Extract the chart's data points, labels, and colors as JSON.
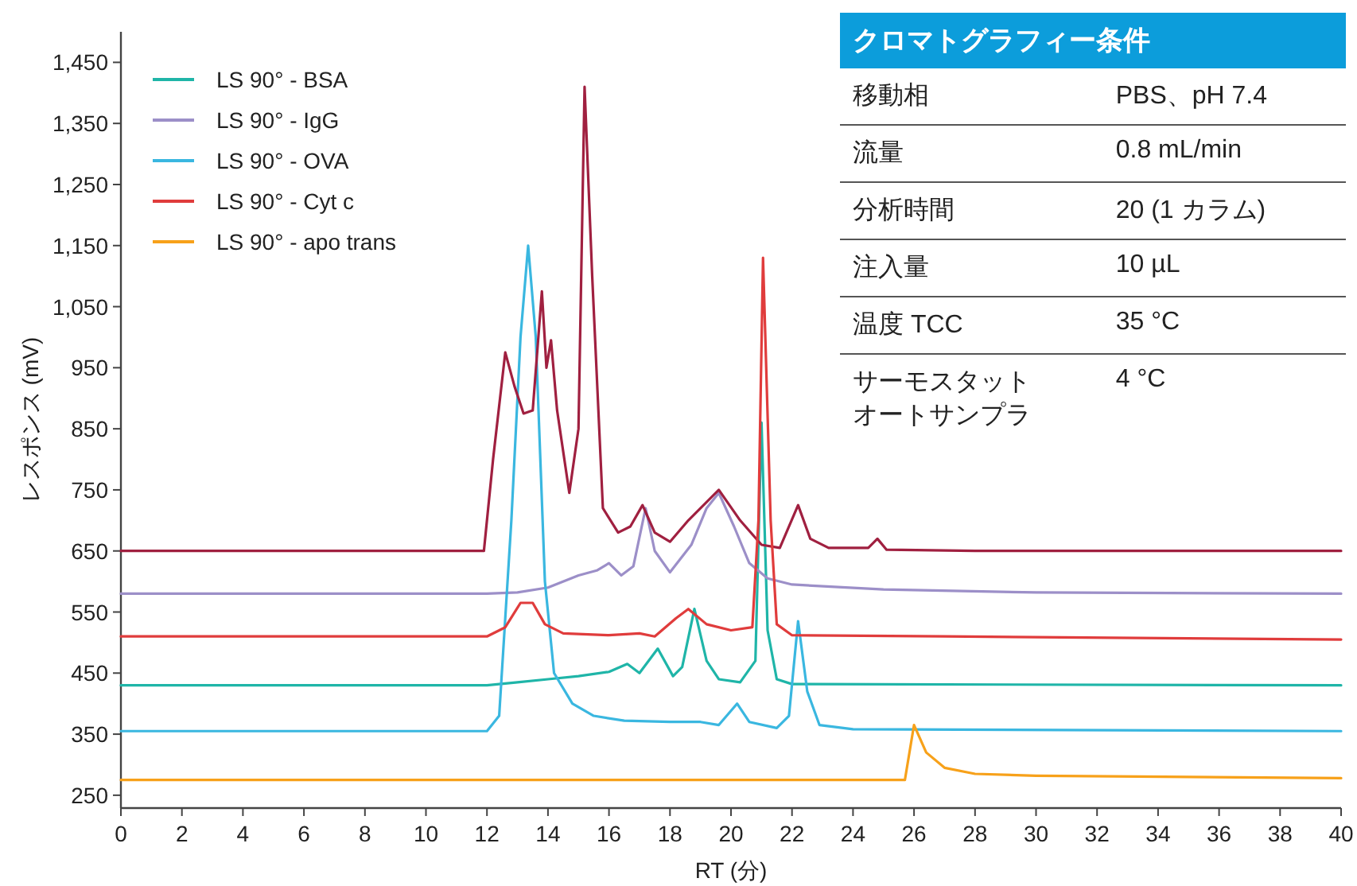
{
  "chart_data": [
    {
      "type": "line",
      "xlabel": "RT (分)",
      "ylabel": "レスポンス (mV)",
      "xlim": [
        0,
        40
      ],
      "ylim": [
        229,
        1500
      ],
      "xticks": [
        0,
        2,
        4,
        6,
        8,
        10,
        12,
        14,
        16,
        18,
        20,
        22,
        24,
        26,
        28,
        30,
        32,
        34,
        36,
        38,
        40
      ],
      "yticks": [
        250,
        350,
        450,
        550,
        650,
        750,
        850,
        950,
        {
          "value": 1050,
          "label": "1,050"
        },
        {
          "value": 1150,
          "label": "1,150"
        },
        {
          "value": 1250,
          "label": "1,250"
        },
        {
          "value": 1350,
          "label": "1,350"
        },
        {
          "value": 1450,
          "label": "1,450"
        }
      ],
      "legend": "top left",
      "grid": false,
      "series": [
        {
          "name": "LS 90° - BSA",
          "color": "#1fb5a8",
          "x": [
            0,
            12,
            13,
            14,
            15,
            16,
            16.6,
            17,
            17.6,
            18.1,
            18.4,
            18.8,
            19.2,
            19.6,
            20.3,
            20.8,
            21,
            21.2,
            21.5,
            22,
            40
          ],
          "values": [
            430,
            430,
            435,
            440,
            445,
            452,
            465,
            450,
            490,
            445,
            460,
            555,
            470,
            440,
            435,
            470,
            860,
            520,
            440,
            432,
            430
          ]
        },
        {
          "name": "LS 90° - IgG",
          "color": "#9c8fc8",
          "x": [
            0,
            12,
            13,
            14,
            15,
            15.6,
            16,
            16.4,
            16.8,
            17.2,
            17.5,
            18,
            18.7,
            19.2,
            19.6,
            20.1,
            20.6,
            21.2,
            22,
            25,
            30,
            40
          ],
          "values": [
            580,
            580,
            582,
            590,
            610,
            618,
            630,
            610,
            625,
            720,
            650,
            615,
            660,
            720,
            745,
            690,
            630,
            605,
            595,
            587,
            582,
            580
          ]
        },
        {
          "name": "LS 90° - OVA",
          "color": "#3ab7e0",
          "x": [
            0,
            12,
            12.4,
            12.8,
            13.1,
            13.35,
            13.6,
            13.9,
            14.2,
            14.8,
            15.5,
            16.5,
            18,
            19,
            19.6,
            20.2,
            20.6,
            21.5,
            21.9,
            22.2,
            22.5,
            22.9,
            24,
            40
          ],
          "values": [
            355,
            355,
            380,
            700,
            1000,
            1150,
            1000,
            600,
            450,
            400,
            380,
            372,
            370,
            370,
            365,
            400,
            370,
            360,
            380,
            535,
            420,
            365,
            358,
            355
          ]
        },
        {
          "color": "#a02040",
          "x": [
            0,
            11.9,
            12.2,
            12.6,
            12.9,
            13.2,
            13.5,
            13.8,
            13.95,
            14.1,
            14.3,
            14.7,
            15,
            15.2,
            15.45,
            15.8,
            16.3,
            16.7,
            17.1,
            17.5,
            18,
            18.6,
            19.6,
            20.3,
            21,
            21.6,
            22.2,
            22.6,
            23.2,
            24.5,
            24.8,
            25.1,
            28,
            40
          ],
          "values": [
            650,
            650,
            800,
            975,
            920,
            875,
            880,
            1075,
            950,
            995,
            880,
            745,
            850,
            1410,
            1100,
            720,
            680,
            690,
            725,
            680,
            665,
            700,
            750,
            700,
            660,
            655,
            725,
            670,
            655,
            655,
            670,
            652,
            650,
            650
          ]
        },
        {
          "name": "LS 90° - Cyt c",
          "color": "#e03c3c",
          "x": [
            0,
            12,
            12.6,
            13.1,
            13.5,
            13.9,
            14.5,
            16,
            17,
            17.5,
            18.2,
            18.6,
            19.2,
            20,
            20.7,
            20.9,
            21.05,
            21.3,
            21.5,
            22,
            27,
            40
          ],
          "values": [
            510,
            510,
            525,
            565,
            565,
            530,
            515,
            512,
            515,
            510,
            540,
            555,
            530,
            520,
            525,
            700,
            1130,
            700,
            530,
            512,
            510,
            505
          ]
        },
        {
          "name": "LS 90° - apo trans",
          "color": "#f7a11a",
          "x": [
            0,
            25.7,
            26,
            26.4,
            27,
            28,
            30,
            40
          ],
          "values": [
            275,
            275,
            365,
            320,
            295,
            285,
            282,
            278
          ]
        }
      ]
    },
    {
      "type": "other",
      "title": "クロマトグラフィー条件",
      "annotations": [
        "移動相",
        "PBS、pH 7.4",
        "流量",
        "0.8 mL/min",
        "分析時間",
        "20 (1 カラム)",
        "注入量",
        "10 µL",
        "温度 TCC",
        "35 °C",
        "サーモスタットオートサンプラ",
        "4 °C"
      ]
    }
  ]
}
